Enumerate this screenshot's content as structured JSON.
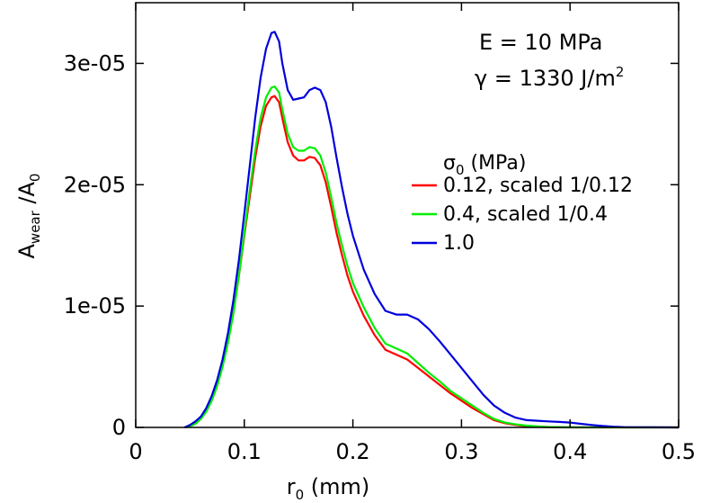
{
  "chart_data": {
    "type": "line",
    "title": "",
    "xlabel": {
      "main": "r",
      "sub": "0",
      "rest": " (mm)"
    },
    "ylabel": {
      "main": "A",
      "sub": "wear",
      "mid": " /A",
      "sub2": "0"
    },
    "xlim": [
      0,
      0.5
    ],
    "ylim": [
      0,
      3.5e-05
    ],
    "xticks": [
      0,
      0.1,
      0.2,
      0.3,
      0.4,
      0.5
    ],
    "xtick_labels": [
      "0",
      "0.1",
      "0.2",
      "0.3",
      "0.4",
      "0.5"
    ],
    "yticks": [
      0,
      1e-05,
      2e-05,
      3e-05
    ],
    "ytick_labels": [
      "0",
      "1e-05",
      "2e-05",
      "3e-05"
    ],
    "grid": false,
    "annotations": {
      "line1": "E = 10 MPa",
      "line2_main": "γ = 1330 J/m",
      "line2_sup": "2"
    },
    "legend": {
      "placement": "right",
      "title_main": "σ",
      "title_sub": "0",
      "title_rest": " (MPa)"
    },
    "series": [
      {
        "name": "0.12, scaled 1/0.12",
        "color": "#ff0000",
        "x": [
          0.045,
          0.05,
          0.055,
          0.06,
          0.065,
          0.07,
          0.075,
          0.08,
          0.085,
          0.09,
          0.095,
          0.1,
          0.105,
          0.11,
          0.115,
          0.12,
          0.125,
          0.128,
          0.132,
          0.135,
          0.14,
          0.145,
          0.15,
          0.155,
          0.16,
          0.165,
          0.17,
          0.175,
          0.18,
          0.185,
          0.19,
          0.195,
          0.2,
          0.21,
          0.22,
          0.23,
          0.24,
          0.25,
          0.26,
          0.27,
          0.28,
          0.29,
          0.3,
          0.31,
          0.32,
          0.33,
          0.34,
          0.35,
          0.36,
          0.37,
          0.38,
          0.39,
          0.4,
          0.45,
          0.5
        ],
        "y": [
          0,
          1.5e-07,
          4e-07,
          8e-07,
          1.5e-06,
          2.4e-06,
          3.6e-06,
          5.2e-06,
          7.2e-06,
          9.6e-06,
          1.25e-05,
          1.58e-05,
          1.9e-05,
          2.22e-05,
          2.48e-05,
          2.65e-05,
          2.72e-05,
          2.73e-05,
          2.68e-05,
          2.55e-05,
          2.35e-05,
          2.24e-05,
          2.2e-05,
          2.2e-05,
          2.23e-05,
          2.22e-05,
          2.16e-05,
          2.02e-05,
          1.82e-05,
          1.6e-05,
          1.42e-05,
          1.25e-05,
          1.12e-05,
          9.2e-06,
          7.6e-06,
          6.4e-06,
          6e-06,
          5.6e-06,
          4.9e-06,
          4.2e-06,
          3.5e-06,
          2.8e-06,
          2.2e-06,
          1.6e-06,
          1.1e-06,
          6e-07,
          3.5e-07,
          2e-07,
          1e-07,
          5e-08,
          2e-08,
          1e-08,
          0,
          0,
          0
        ]
      },
      {
        "name": "0.4, scaled 1/0.4",
        "color": "#00ee00",
        "x": [
          0.045,
          0.05,
          0.055,
          0.06,
          0.065,
          0.07,
          0.075,
          0.08,
          0.085,
          0.09,
          0.095,
          0.1,
          0.105,
          0.11,
          0.115,
          0.12,
          0.125,
          0.128,
          0.132,
          0.135,
          0.14,
          0.145,
          0.15,
          0.155,
          0.16,
          0.165,
          0.17,
          0.175,
          0.18,
          0.185,
          0.19,
          0.195,
          0.2,
          0.21,
          0.22,
          0.23,
          0.24,
          0.25,
          0.26,
          0.27,
          0.28,
          0.29,
          0.3,
          0.31,
          0.32,
          0.33,
          0.34,
          0.35,
          0.36,
          0.37,
          0.38,
          0.39,
          0.4,
          0.45,
          0.5
        ],
        "y": [
          0,
          1e-07,
          3e-07,
          7e-07,
          1.3e-06,
          2.2e-06,
          3.4e-06,
          5e-06,
          7e-06,
          9.4e-06,
          1.25e-05,
          1.6e-05,
          1.95e-05,
          2.28e-05,
          2.55e-05,
          2.72e-05,
          2.8e-05,
          2.81e-05,
          2.76e-05,
          2.62e-05,
          2.42e-05,
          2.31e-05,
          2.28e-05,
          2.28e-05,
          2.31e-05,
          2.3e-05,
          2.24e-05,
          2.1e-05,
          1.9e-05,
          1.68e-05,
          1.5e-05,
          1.33e-05,
          1.19e-05,
          9.9e-06,
          8.2e-06,
          6.9e-06,
          6.5e-06,
          6.1e-06,
          5.3e-06,
          4.5e-06,
          3.8e-06,
          3e-06,
          2.4e-06,
          1.8e-06,
          1.2e-06,
          7e-07,
          4e-07,
          2.5e-07,
          1.5e-07,
          8e-08,
          4e-08,
          2e-08,
          1e-08,
          0,
          0
        ]
      },
      {
        "name": "1.0",
        "color": "#0000dd",
        "x": [
          0.045,
          0.05,
          0.055,
          0.06,
          0.065,
          0.07,
          0.075,
          0.08,
          0.085,
          0.09,
          0.095,
          0.1,
          0.105,
          0.11,
          0.115,
          0.12,
          0.125,
          0.128,
          0.132,
          0.135,
          0.14,
          0.145,
          0.15,
          0.155,
          0.16,
          0.165,
          0.17,
          0.175,
          0.18,
          0.185,
          0.19,
          0.195,
          0.2,
          0.21,
          0.22,
          0.23,
          0.24,
          0.25,
          0.26,
          0.27,
          0.28,
          0.29,
          0.3,
          0.31,
          0.32,
          0.33,
          0.34,
          0.35,
          0.36,
          0.37,
          0.38,
          0.39,
          0.4,
          0.41,
          0.42,
          0.43,
          0.44,
          0.45,
          0.5
        ],
        "y": [
          0,
          2e-07,
          5e-07,
          9e-07,
          1.6e-06,
          2.6e-06,
          3.9e-06,
          5.6e-06,
          7.8e-06,
          1.05e-05,
          1.38e-05,
          1.76e-05,
          2.15e-05,
          2.55e-05,
          2.88e-05,
          3.12e-05,
          3.25e-05,
          3.26e-05,
          3.18e-05,
          3e-05,
          2.78e-05,
          2.7e-05,
          2.71e-05,
          2.72e-05,
          2.78e-05,
          2.8e-05,
          2.78e-05,
          2.68e-05,
          2.48e-05,
          2.22e-05,
          1.98e-05,
          1.76e-05,
          1.58e-05,
          1.3e-05,
          1.1e-05,
          9.6e-06,
          9.3e-06,
          9.3e-06,
          8.9e-06,
          8.1e-06,
          7.1e-06,
          6e-06,
          4.9e-06,
          3.8e-06,
          2.7e-06,
          1.8e-06,
          1.2e-06,
          8e-07,
          6e-07,
          5.5e-07,
          5e-07,
          4.5e-07,
          4e-07,
          3e-07,
          2e-07,
          1.2e-07,
          6e-08,
          2e-08,
          0
        ]
      }
    ]
  }
}
